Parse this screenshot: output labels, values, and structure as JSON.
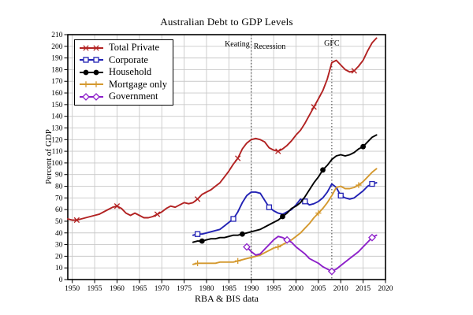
{
  "chart_data": {
    "type": "line",
    "title": "Australian Debt to GDP Levels",
    "xlabel": "RBA & BIS data",
    "ylabel": "Percent of GDP",
    "xlim": [
      1949,
      2020
    ],
    "ylim": [
      0,
      210
    ],
    "grid": true,
    "legend_position": "upper-left",
    "x_ticks": [
      1950,
      1955,
      1960,
      1965,
      1970,
      1975,
      1980,
      1985,
      1990,
      1995,
      2000,
      2005,
      2010,
      2015,
      2020
    ],
    "y_ticks": [
      0,
      10,
      20,
      30,
      40,
      50,
      60,
      70,
      80,
      90,
      100,
      110,
      120,
      130,
      140,
      150,
      160,
      170,
      180,
      190,
      200,
      210
    ],
    "colors": {
      "grid": "#c9c9c9",
      "axis": "#000000",
      "event_line": "#3a3a3a"
    },
    "event_lines": [
      {
        "year": 1990,
        "style": "dotted"
      },
      {
        "year": 2008,
        "style": "dotted"
      }
    ],
    "annotations": [
      {
        "year": 1990,
        "text": "Keating",
        "side": "left"
      },
      {
        "year": 1990,
        "text": "Recession",
        "side": "right"
      },
      {
        "year": 2008,
        "text": "GFC",
        "side": "center"
      }
    ],
    "series": [
      {
        "name": "Total Private",
        "color": "#b22222",
        "marker": "x",
        "start_year": 1949,
        "marker_years": [
          1951,
          1960,
          1969,
          1978,
          1987,
          1996,
          2004,
          2013
        ],
        "values": [
          52,
          51,
          51,
          52,
          53,
          54,
          55,
          56,
          58,
          60,
          62,
          63,
          61,
          57,
          55,
          57,
          55,
          53,
          53,
          54,
          56,
          58,
          61,
          63,
          62,
          64,
          66,
          65,
          66,
          69,
          73,
          75,
          77,
          80,
          83,
          88,
          93,
          99,
          104,
          112,
          117,
          120,
          121,
          120,
          118,
          113,
          111,
          110,
          112,
          115,
          119,
          124,
          128,
          134,
          141,
          148,
          155,
          162,
          172,
          186,
          188,
          184,
          180,
          178,
          179,
          183,
          188,
          196,
          203,
          207
        ]
      },
      {
        "name": "Corporate",
        "color": "#2222b4",
        "marker": "square-open",
        "start_year": 1977,
        "marker_years": [
          1978,
          1986,
          1994,
          2002,
          2010,
          2017
        ],
        "values": [
          38,
          39,
          39,
          40,
          41,
          42,
          43,
          46,
          49,
          52,
          58,
          66,
          72,
          75,
          75,
          74,
          68,
          62,
          59,
          57,
          56,
          58,
          60,
          64,
          69,
          67,
          64,
          65,
          67,
          70,
          75,
          82,
          79,
          72,
          70,
          69,
          70,
          73,
          76,
          80,
          82,
          83
        ]
      },
      {
        "name": "Household",
        "color": "#000000",
        "marker": "circle",
        "start_year": 1977,
        "marker_years": [
          1979,
          1988,
          1997,
          2006,
          2015
        ],
        "values": [
          32,
          33,
          33,
          34,
          35,
          35,
          36,
          36,
          37,
          38,
          38,
          39,
          40,
          41,
          42,
          43,
          45,
          47,
          49,
          51,
          54,
          57,
          61,
          63,
          66,
          71,
          77,
          83,
          88,
          94,
          98,
          103,
          106,
          107,
          106,
          107,
          109,
          112,
          114,
          118,
          122,
          124
        ]
      },
      {
        "name": "Mortgage only",
        "color": "#d4992f",
        "marker": "plus",
        "start_year": 1977,
        "marker_years": [
          1978,
          1987,
          1996,
          2005,
          2014
        ],
        "values": [
          13,
          14,
          14,
          14,
          14,
          14,
          15,
          15,
          15,
          15,
          16,
          17,
          18,
          19,
          20,
          21,
          23,
          25,
          27,
          28,
          30,
          32,
          34,
          37,
          40,
          44,
          48,
          53,
          57,
          61,
          66,
          72,
          79,
          80,
          78,
          78,
          79,
          81,
          84,
          88,
          92,
          95
        ]
      },
      {
        "name": "Government",
        "color": "#8c1fc9",
        "marker": "diamond-open",
        "start_year": 1989,
        "marker_years": [
          1989,
          1998,
          2008,
          2017
        ],
        "values": [
          28,
          24,
          21,
          22,
          26,
          30,
          34,
          37,
          36,
          34,
          32,
          28,
          25,
          22,
          18,
          16,
          14,
          11,
          9,
          7,
          9,
          12,
          15,
          18,
          21,
          24,
          28,
          32,
          36,
          38
        ]
      }
    ]
  }
}
